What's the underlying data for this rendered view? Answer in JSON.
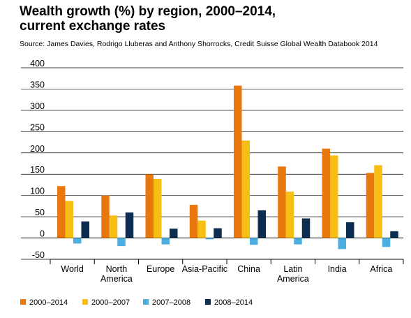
{
  "chart_data": {
    "type": "bar",
    "title_lines": [
      "Wealth growth (%) by region, 2000–2014,",
      "current exchange rates"
    ],
    "subtitle": "Source: James Davies, Rodrigo Lluberas and Anthony Shorrocks, Credit Suisse Global Wealth Databook 2014",
    "categories": [
      "World",
      "North America",
      "Europe",
      "Asia-Pacific",
      "China",
      "Latin America",
      "India",
      "Africa"
    ],
    "category_label_lines": [
      [
        "World"
      ],
      [
        "North",
        "America"
      ],
      [
        "Europe"
      ],
      [
        "Asia-Pacific"
      ],
      [
        "China"
      ],
      [
        "Latin",
        "America"
      ],
      [
        "India"
      ],
      [
        "Africa"
      ]
    ],
    "series": [
      {
        "name": "2000–2014",
        "color": "#e8770e",
        "values": [
          122,
          100,
          150,
          78,
          358,
          168,
          210,
          153
        ]
      },
      {
        "name": "2000–2007",
        "color": "#f7be16",
        "values": [
          87,
          53,
          139,
          41,
          229,
          109,
          194,
          171
        ]
      },
      {
        "name": "2007–2008",
        "color": "#4dafe0",
        "values": [
          -13,
          -19,
          -15,
          -3,
          -16,
          -15,
          -26,
          -21
        ]
      },
      {
        "name": "2008–2014",
        "color": "#0c2d4f",
        "values": [
          39,
          60,
          22,
          23,
          65,
          46,
          37,
          16
        ]
      }
    ],
    "ylim": [
      -50,
      400
    ],
    "yticks": [
      -50,
      0,
      50,
      100,
      150,
      200,
      250,
      300,
      350,
      400
    ],
    "ytick_labels": [
      "-50",
      "0",
      "50",
      "100",
      "150",
      "200",
      "250",
      "300",
      "350",
      "400"
    ],
    "xlabel": "",
    "ylabel": "",
    "grid": "horizontal",
    "legend_position": "bottom"
  }
}
